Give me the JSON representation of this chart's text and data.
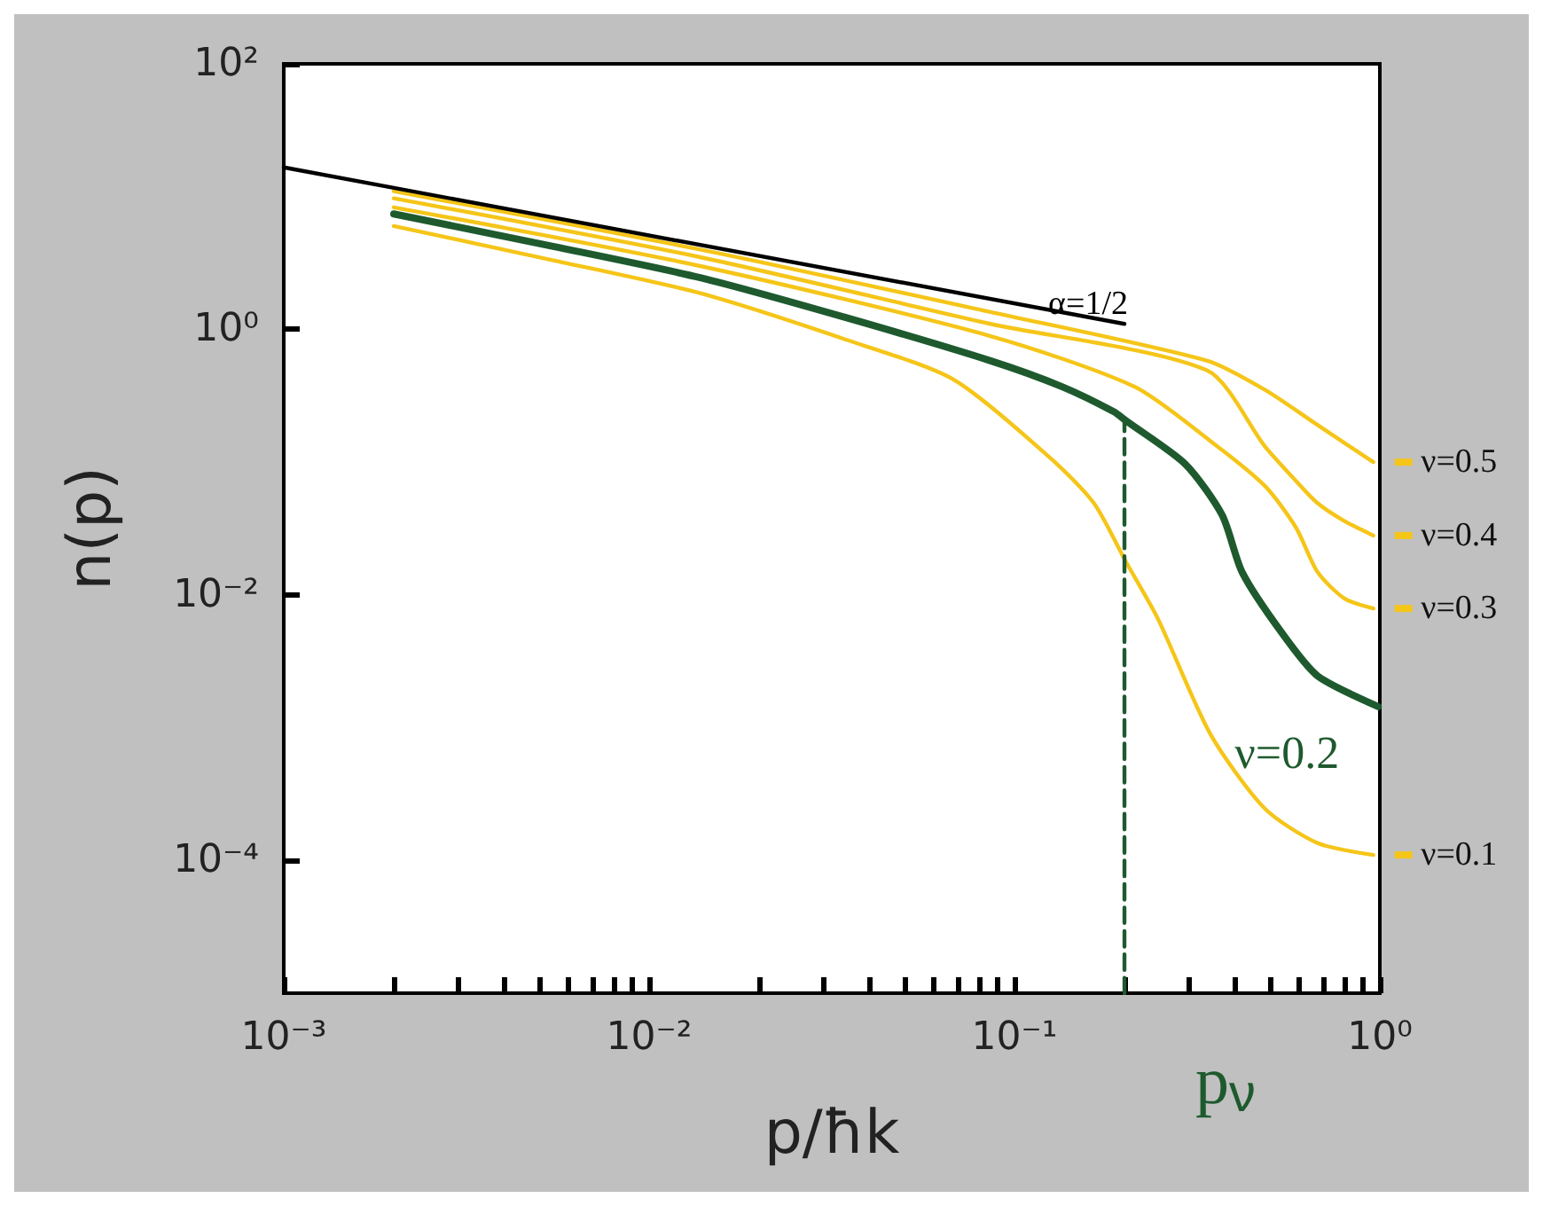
{
  "chart_data": {
    "type": "line",
    "xlabel": "p/ħk",
    "ylabel": "n(p)",
    "log": "xy",
    "grid": false,
    "legend": "right",
    "marker": "none",
    "line_style": "solid",
    "xlim": [
      0.001,
      1
    ],
    "ylim": [
      1e-05,
      100
    ],
    "xticks": [
      {
        "value": 0.001,
        "label": "10⁻³"
      },
      {
        "value": 0.002,
        "label": null
      },
      {
        "value": 0.003,
        "label": null
      },
      {
        "value": 0.004,
        "label": null
      },
      {
        "value": 0.005,
        "label": null
      },
      {
        "value": 0.006,
        "label": null
      },
      {
        "value": 0.007,
        "label": null
      },
      {
        "value": 0.008,
        "label": null
      },
      {
        "value": 0.009,
        "label": null
      },
      {
        "value": 0.01,
        "label": "10⁻²"
      },
      {
        "value": 0.02,
        "label": null
      },
      {
        "value": 0.03,
        "label": null
      },
      {
        "value": 0.04,
        "label": null
      },
      {
        "value": 0.05,
        "label": null
      },
      {
        "value": 0.06,
        "label": null
      },
      {
        "value": 0.07,
        "label": null
      },
      {
        "value": 0.08,
        "label": null
      },
      {
        "value": 0.09,
        "label": null
      },
      {
        "value": 0.1,
        "label": "10⁻¹"
      },
      {
        "value": 0.2,
        "label": null
      },
      {
        "value": 0.3,
        "label": null
      },
      {
        "value": 0.4,
        "label": null
      },
      {
        "value": 0.5,
        "label": null
      },
      {
        "value": 0.6,
        "label": null
      },
      {
        "value": 0.7,
        "label": null
      },
      {
        "value": 0.8,
        "label": null
      },
      {
        "value": 0.9,
        "label": null
      },
      {
        "value": 1,
        "label": "10⁰"
      }
    ],
    "yticks": [
      {
        "value": 0.0001,
        "label": "10⁻⁴"
      },
      {
        "value": 0.01,
        "label": "10⁻²"
      },
      {
        "value": 1,
        "label": "10⁰"
      },
      {
        "value": 100,
        "label": "10²"
      }
    ],
    "series": [
      {
        "name": "α=1/2",
        "color": "#000000",
        "x": [
          0.001,
          0.2
        ],
        "values": [
          16.6,
          1.1
        ]
      },
      {
        "name": "ν=0.5",
        "color": "#f5c518",
        "x": [
          0.002,
          0.0138,
          0.086,
          0.337,
          0.485,
          0.676,
          0.96
        ],
        "values": [
          11,
          4.0,
          1.35,
          0.58,
          0.35,
          0.19,
          0.1
        ]
      },
      {
        "name": "ν=0.4",
        "color": "#f5c518",
        "x": [
          0.002,
          0.0138,
          0.086,
          0.337,
          0.485,
          0.59,
          0.676,
          0.8,
          0.96
        ],
        "values": [
          9.7,
          3.5,
          1.1,
          0.49,
          0.131,
          0.072,
          0.049,
          0.036,
          0.028
        ]
      },
      {
        "name": "ν=0.3",
        "color": "#f5c518",
        "x": [
          0.002,
          0.0138,
          0.086,
          0.213,
          0.344,
          0.485,
          0.59,
          0.676,
          0.8,
          0.96
        ],
        "values": [
          8.3,
          3.0,
          0.89,
          0.37,
          0.144,
          0.066,
          0.032,
          0.0148,
          0.0094,
          0.0079
        ]
      },
      {
        "name": "ν=0.2",
        "color": "#1e5a2e",
        "x": [
          0.002,
          0.0055,
          0.0138,
          0.0344,
          0.086,
          0.135,
          0.187,
          0.202,
          0.293,
          0.37,
          0.42,
          0.536,
          0.676,
          0.99
        ],
        "values": [
          7.4,
          4.2,
          2.45,
          1.23,
          0.58,
          0.37,
          0.24,
          0.205,
          0.097,
          0.04,
          0.0148,
          0.0053,
          0.00245,
          0.00144
        ]
      },
      {
        "name": "ν=0.1",
        "color": "#f5c518",
        "x": [
          0.002,
          0.0055,
          0.0138,
          0.0344,
          0.068,
          0.126,
          0.165,
          0.202,
          0.247,
          0.344,
          0.485,
          0.676,
          0.96
        ],
        "values": [
          6.0,
          3.3,
          1.87,
          0.84,
          0.42,
          0.106,
          0.049,
          0.0177,
          0.0066,
          0.00089,
          0.000245,
          0.000135,
          0.00011
        ]
      },
      {
        "color": "#1e5a2e",
        "line_style": "dashed",
        "x": [
          0.2,
          0.2
        ],
        "values": [
          1e-05,
          0.205
        ]
      }
    ],
    "annotations": [
      "p$_{ν}$"
    ]
  }
}
